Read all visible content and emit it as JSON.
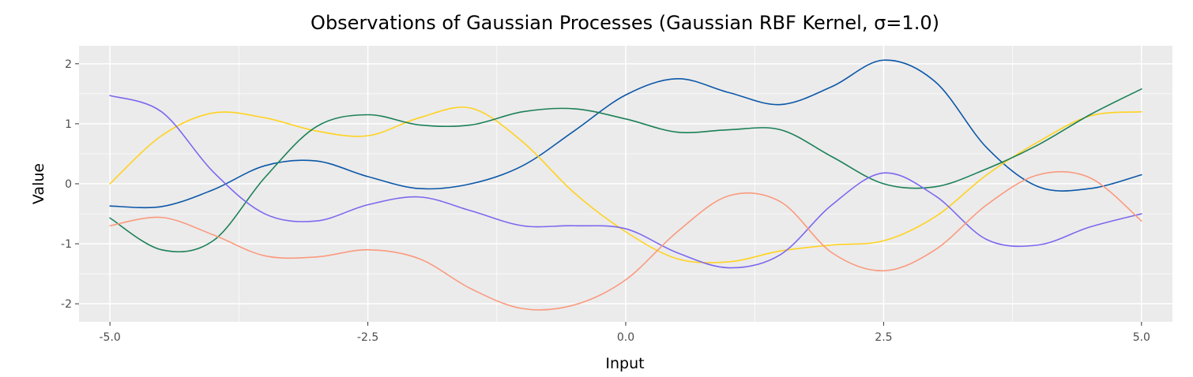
{
  "chart_data": {
    "type": "line",
    "title": "Observations of Gaussian Processes (Gaussian RBF Kernel, σ=1.0)",
    "xlabel": "Input",
    "ylabel": "Value",
    "xlim": [
      -5.3,
      5.3
    ],
    "ylim": [
      -2.3,
      2.3
    ],
    "x_ticks": [
      -5.0,
      -2.5,
      0.0,
      2.5,
      5.0
    ],
    "x_tick_labels": [
      "-5.0",
      "-2.5",
      "0.0",
      "2.5",
      "5.0"
    ],
    "y_ticks": [
      -2,
      -1,
      0,
      1,
      2
    ],
    "y_tick_labels": [
      "-2",
      "-1",
      "0",
      "1",
      "2"
    ],
    "grid": true,
    "background": "#EBEBEB",
    "series": [
      {
        "color": "#0B57A8",
        "x": [
          -5.0,
          -4.5,
          -4.0,
          -3.5,
          -3.0,
          -2.5,
          -2.0,
          -1.5,
          -1.0,
          -0.5,
          0.0,
          0.5,
          1.0,
          1.5,
          2.0,
          2.5,
          3.0,
          3.5,
          4.0,
          4.5,
          5.0
        ],
        "y": [
          -0.37,
          -0.38,
          -0.1,
          0.3,
          0.38,
          0.12,
          -0.08,
          0.0,
          0.3,
          0.88,
          1.48,
          1.75,
          1.52,
          1.32,
          1.62,
          2.06,
          1.7,
          0.6,
          -0.05,
          -0.08,
          0.15
        ]
      },
      {
        "color": "#FFD21F",
        "x": [
          -5.0,
          -4.5,
          -4.0,
          -3.5,
          -3.0,
          -2.5,
          -2.0,
          -1.5,
          -1.0,
          -0.5,
          0.0,
          0.5,
          1.0,
          1.5,
          2.0,
          2.5,
          3.0,
          3.5,
          4.0,
          4.5,
          5.0
        ],
        "y": [
          0.0,
          0.8,
          1.18,
          1.1,
          0.88,
          0.8,
          1.1,
          1.26,
          0.7,
          -0.15,
          -0.8,
          -1.25,
          -1.3,
          -1.12,
          -1.02,
          -0.95,
          -0.55,
          0.15,
          0.7,
          1.13,
          1.2
        ]
      },
      {
        "color": "#1C8057",
        "x": [
          -5.0,
          -4.5,
          -4.0,
          -3.5,
          -3.0,
          -2.5,
          -2.0,
          -1.5,
          -1.0,
          -0.5,
          0.0,
          0.5,
          1.0,
          1.5,
          2.0,
          2.5,
          3.0,
          3.5,
          4.0,
          4.5,
          5.0
        ],
        "y": [
          -0.57,
          -1.1,
          -0.95,
          0.1,
          0.95,
          1.15,
          0.98,
          0.98,
          1.2,
          1.25,
          1.08,
          0.86,
          0.9,
          0.9,
          0.45,
          0.0,
          -0.05,
          0.25,
          0.65,
          1.15,
          1.58
        ]
      },
      {
        "color": "#7B68EE",
        "x": [
          -5.0,
          -4.5,
          -4.0,
          -3.5,
          -3.0,
          -2.5,
          -2.0,
          -1.5,
          -1.0,
          -0.5,
          0.0,
          0.5,
          1.0,
          1.5,
          2.0,
          2.5,
          3.0,
          3.5,
          4.0,
          4.5,
          5.0
        ],
        "y": [
          1.47,
          1.2,
          0.2,
          -0.5,
          -0.62,
          -0.35,
          -0.22,
          -0.45,
          -0.7,
          -0.7,
          -0.75,
          -1.15,
          -1.4,
          -1.18,
          -0.35,
          0.18,
          -0.2,
          -0.93,
          -1.02,
          -0.72,
          -0.5
        ]
      },
      {
        "color": "#FA9A7E",
        "x": [
          -5.0,
          -4.5,
          -4.0,
          -3.5,
          -3.0,
          -2.5,
          -2.0,
          -1.5,
          -1.0,
          -0.5,
          0.0,
          0.5,
          1.0,
          1.5,
          2.0,
          2.5,
          3.0,
          3.5,
          4.0,
          4.5,
          5.0
        ],
        "y": [
          -0.7,
          -0.56,
          -0.85,
          -1.2,
          -1.22,
          -1.1,
          -1.25,
          -1.75,
          -2.08,
          -2.02,
          -1.6,
          -0.8,
          -0.2,
          -0.3,
          -1.15,
          -1.45,
          -1.1,
          -0.35,
          0.15,
          0.1,
          -0.62
        ]
      }
    ]
  }
}
